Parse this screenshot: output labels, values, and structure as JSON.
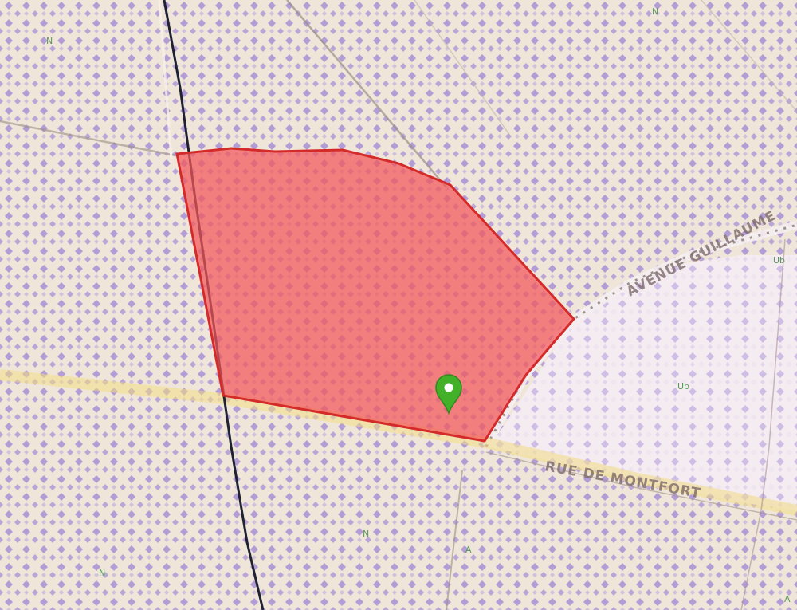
{
  "map": {
    "zone_labels": {
      "top_left": "N",
      "top_center": "N",
      "right": "Ub",
      "lower_right": "Ub",
      "bottom_left": "N",
      "bottom_center": "N",
      "bottom_marker_a": "A",
      "bottom_right_marker": "A"
    },
    "road_labels": {
      "avenue": "AVENUE GUILLAUME",
      "rue": "RUE DE MONTFORT"
    },
    "colors": {
      "background": "#efe6d9",
      "hatch_pattern": "#a98fd6",
      "selected_parcel_fill": "#f2575a",
      "selected_parcel_stroke": "#d42a2a",
      "railway": "#1f2233",
      "marker": "#43b02a"
    },
    "icons": {
      "location_marker": "map-pin-icon"
    }
  }
}
